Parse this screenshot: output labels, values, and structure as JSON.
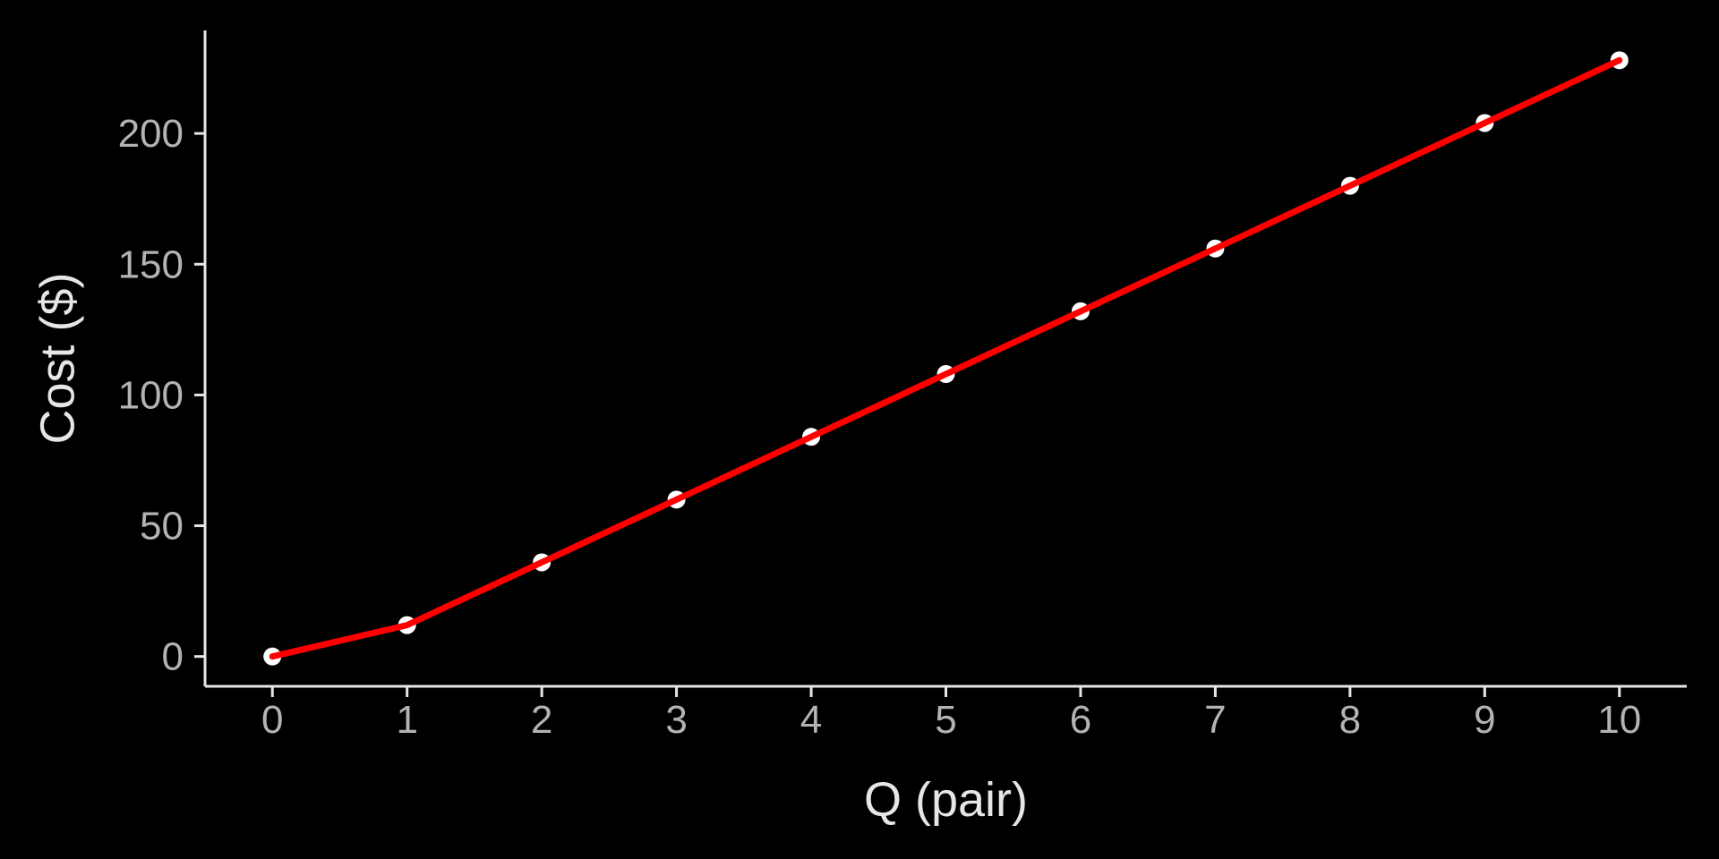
{
  "chart_data": {
    "type": "line",
    "title": "",
    "xlabel": "Q (pair)",
    "ylabel": "Cost ($)",
    "x": [
      0,
      1,
      2,
      3,
      4,
      5,
      6,
      7,
      8,
      9,
      10
    ],
    "series": [
      {
        "values": [
          0,
          12,
          36,
          60,
          84,
          108,
          132,
          156,
          180,
          204,
          228
        ]
      }
    ],
    "xlim": [
      -0.5,
      10.5
    ],
    "ylim": [
      -11.4,
      239.4
    ],
    "xticks": [
      0,
      1,
      2,
      3,
      4,
      5,
      6,
      7,
      8,
      9,
      10
    ],
    "yticks": [
      0,
      50,
      100,
      150,
      200
    ],
    "grid": false,
    "legend": "none",
    "markers": true,
    "colors": {
      "background": "#000000",
      "line": "#ff0000",
      "points": "#ffffff",
      "axis": "#e6e6e6",
      "tick_labels": "#b3b3b3",
      "axis_titles": "#e6e6e6"
    }
  }
}
